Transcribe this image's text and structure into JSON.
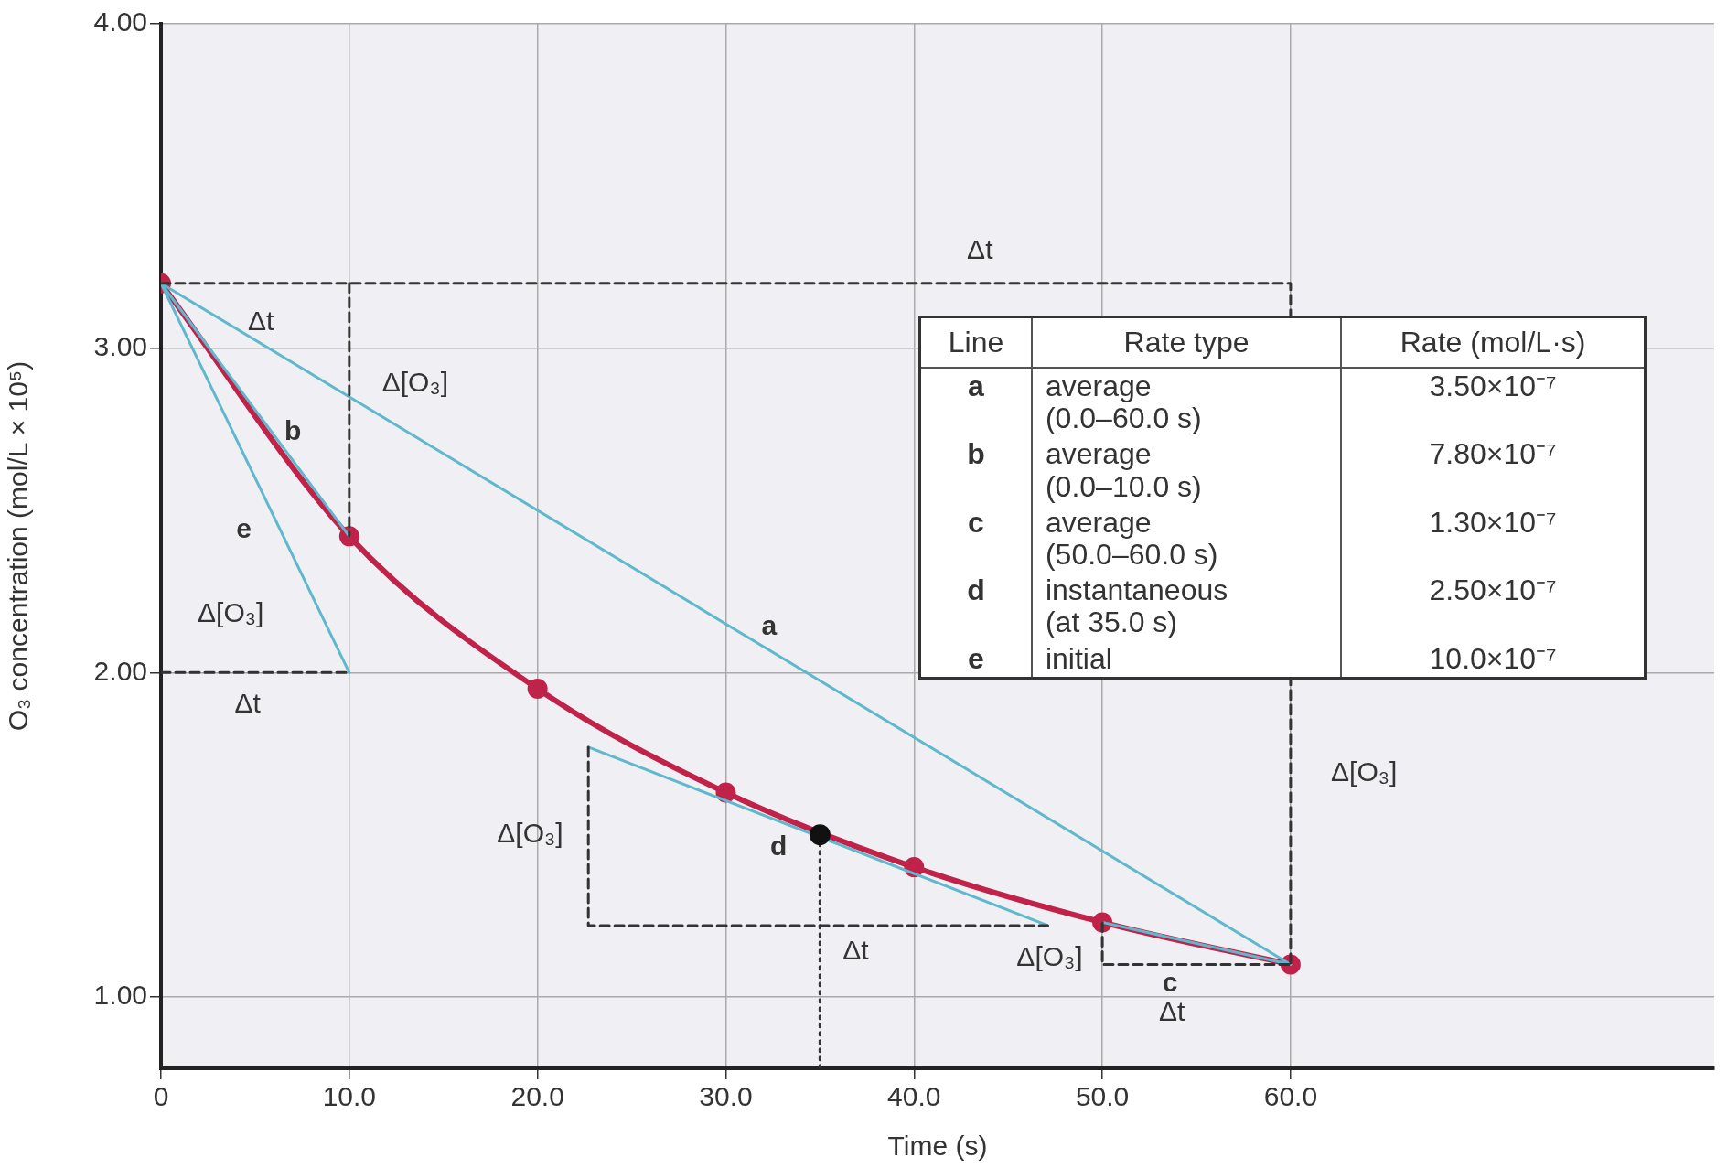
{
  "chart_data": {
    "type": "line",
    "xlabel": "Time (s)",
    "ylabel": "O₃ concentration (mol/L × 10⁵)",
    "xlim": [
      0,
      82.5
    ],
    "ylim": [
      0.78,
      4.0
    ],
    "xticks": [
      0,
      {
        "value": 10,
        "label": "10.0"
      },
      {
        "value": 20,
        "label": "20.0"
      },
      {
        "value": 30,
        "label": "30.0"
      },
      {
        "value": 40,
        "label": "40.0"
      },
      {
        "value": 50,
        "label": "50.0"
      },
      {
        "value": 60,
        "label": "60.0"
      }
    ],
    "yticks": [
      {
        "value": 1,
        "label": "1.00"
      },
      {
        "value": 2,
        "label": "2.00"
      },
      {
        "value": 3,
        "label": "3.00"
      },
      {
        "value": 4,
        "label": "4.00"
      }
    ],
    "grid": true,
    "series": [
      {
        "color": "#5fb8cc",
        "marker": "none",
        "line_style": "solid",
        "x": [
          0,
          60
        ],
        "values": [
          3.2,
          1.1
        ]
      },
      {
        "color": "#5fb8cc",
        "marker": "none",
        "line_style": "solid",
        "x": [
          0,
          10
        ],
        "values": [
          3.2,
          2.42
        ]
      },
      {
        "color": "#5fb8cc",
        "marker": "none",
        "line_style": "solid",
        "x": [
          50,
          60
        ],
        "values": [
          1.23,
          1.1
        ]
      },
      {
        "color": "#5fb8cc",
        "marker": "none",
        "line_style": "solid",
        "x": [
          22.7,
          47.1
        ],
        "values": [
          1.77,
          1.22
        ]
      },
      {
        "color": "#5fb8cc",
        "marker": "none",
        "line_style": "solid",
        "x": [
          0,
          10
        ],
        "values": [
          3.2,
          2.0
        ]
      },
      {
        "color": "#333333",
        "marker": "none",
        "line_style": "dashed",
        "x": [
          0,
          60,
          60
        ],
        "values": [
          3.2,
          3.2,
          1.1
        ]
      },
      {
        "color": "#333333",
        "marker": "none",
        "line_style": "dashed",
        "x": [
          10,
          10
        ],
        "values": [
          3.2,
          2.42
        ]
      },
      {
        "color": "#333333",
        "marker": "none",
        "line_style": "dashed",
        "x": [
          0,
          10
        ],
        "values": [
          2.0,
          2.0
        ]
      },
      {
        "color": "#333333",
        "marker": "none",
        "line_style": "dashed",
        "x": [
          22.7,
          22.7,
          47.1
        ],
        "values": [
          1.77,
          1.22,
          1.22
        ]
      },
      {
        "color": "#333333",
        "marker": "none",
        "line_style": "dashed",
        "x": [
          50,
          50,
          60
        ],
        "values": [
          1.23,
          1.1,
          1.1
        ]
      },
      {
        "color": "#333333",
        "marker": "none",
        "line_style": "dotted",
        "x": [
          35,
          35
        ],
        "values": [
          1.5,
          0.78
        ]
      },
      {
        "color": "#c0224a",
        "marker": "circle",
        "line_style": "solid",
        "x": [
          0,
          10,
          20,
          30,
          40,
          50,
          60
        ],
        "values": [
          3.2,
          2.42,
          1.95,
          1.63,
          1.4,
          1.23,
          1.1
        ]
      },
      {
        "type": "scatter",
        "color": "#111111",
        "marker": "circle",
        "x": [
          35
        ],
        "values": [
          1.5
        ]
      }
    ],
    "annotations": [
      "Δt",
      "Δt",
      "Δ[O₃]",
      "b",
      "e",
      "Δ[O₃]",
      "Δt",
      "a",
      "Δ[O₃]",
      "Δ[O₃]",
      "d",
      "Δt",
      "Δ[O₃]",
      "c",
      "Δt",
      "Line",
      "Rate type",
      "Rate (mol/L·s)",
      "a",
      "average\n   (0.0–60.0 s)",
      "3.50×10⁻⁷",
      "b",
      "average\n   (0.0–10.0 s)",
      "7.80×10⁻⁷",
      "c",
      "average\n   (50.0–60.0 s)",
      "1.30×10⁻⁷",
      "d",
      "instantaneous\n   (at 35.0 s)",
      "2.50×10⁻⁷",
      "e",
      "initial",
      "10.0×10⁻⁷"
    ]
  }
}
